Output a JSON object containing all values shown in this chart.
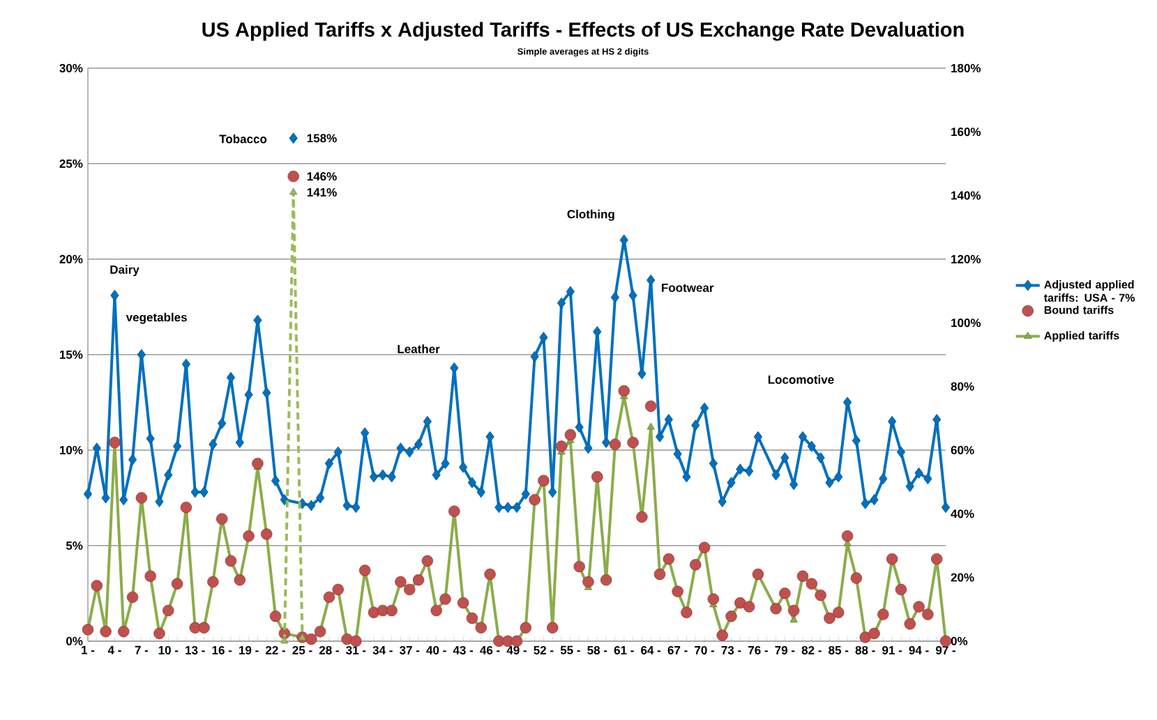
{
  "chart_data": {
    "type": "line",
    "title": "US Applied Tariffs x Adjusted Tariffs - Effects of US Exchange Rate Devaluation",
    "subtitle": "Simple averages at HS 2 digits",
    "categories": [
      "1 -",
      null,
      null,
      "4 -",
      null,
      null,
      "7 -",
      null,
      null,
      "10 -",
      null,
      null,
      "13 -",
      null,
      null,
      "16 -",
      null,
      null,
      "19 -",
      null,
      null,
      "22 -",
      null,
      null,
      "25 -",
      null,
      null,
      "28 -",
      null,
      null,
      "31 -",
      null,
      null,
      "34 -",
      null,
      null,
      "37 -",
      null,
      null,
      "40 -",
      null,
      null,
      "43 -",
      null,
      null,
      "46 -",
      null,
      null,
      "49 -",
      null,
      null,
      "52 -",
      null,
      null,
      "55 -",
      null,
      null,
      "58 -",
      null,
      null,
      "61 -",
      null,
      null,
      "64 -",
      null,
      null,
      "67 -",
      null,
      null,
      "70 -",
      null,
      null,
      "73 -",
      null,
      null,
      "76 -",
      null,
      null,
      "79 -",
      null,
      null,
      "82 -",
      null,
      null,
      "85 -",
      null,
      null,
      "88 -",
      null,
      null,
      "91 -",
      null,
      null,
      "94 -",
      null,
      null,
      "97 -"
    ],
    "series": [
      {
        "name": "Adjusted applied tariffs: USA - 7%",
        "color": "#0070c0",
        "marker": "diamond",
        "values": [
          7.7,
          10.1,
          7.5,
          18.1,
          7.4,
          9.5,
          15.0,
          10.6,
          7.3,
          8.7,
          10.2,
          14.5,
          7.8,
          7.8,
          10.3,
          11.4,
          13.8,
          10.4,
          12.9,
          16.8,
          13.0,
          8.4,
          7.4,
          null,
          7.2,
          7.1,
          7.5,
          9.3,
          9.9,
          7.1,
          7.0,
          10.9,
          8.6,
          8.7,
          8.6,
          10.1,
          9.9,
          10.3,
          11.5,
          8.7,
          9.3,
          14.3,
          9.1,
          8.3,
          7.8,
          10.7,
          7.0,
          7.0,
          7.0,
          7.7,
          14.9,
          15.9,
          7.8,
          17.7,
          18.3,
          11.2,
          10.1,
          16.2,
          10.4,
          18.0,
          21.0,
          18.1,
          14.0,
          18.9,
          10.7,
          11.6,
          9.8,
          8.6,
          11.3,
          12.2,
          9.3,
          7.3,
          8.3,
          9.0,
          8.9,
          10.7,
          null,
          8.7,
          9.6,
          8.2,
          10.7,
          10.2,
          9.6,
          8.3,
          8.6,
          12.5,
          10.5,
          7.2,
          7.4,
          8.5,
          11.5,
          9.9,
          8.1,
          8.8,
          8.5,
          11.6,
          7.0
        ]
      },
      {
        "name": "Applied tariffs",
        "color": "#8aad4a",
        "marker": "triangle",
        "values": [
          0.6,
          2.9,
          0.5,
          10.4,
          0.5,
          2.3,
          7.5,
          3.4,
          0.4,
          1.6,
          3.0,
          7.0,
          0.7,
          0.7,
          3.1,
          6.4,
          4.2,
          3.2,
          5.5,
          9.1,
          5.6,
          1.3,
          0.4,
          null,
          0.2,
          0.1,
          0.5,
          2.3,
          2.7,
          0.1,
          0.0,
          3.7,
          1.5,
          1.6,
          1.6,
          3.1,
          2.7,
          3.2,
          4.2,
          1.6,
          2.2,
          6.8,
          2.0,
          1.2,
          0.7,
          3.5,
          0.0,
          0.0,
          0.0,
          0.7,
          7.4,
          8.4,
          0.7,
          9.9,
          10.5,
          3.9,
          2.8,
          8.6,
          3.2,
          10.3,
          12.8,
          10.4,
          6.5,
          11.2,
          3.5,
          4.3,
          2.6,
          1.5,
          4.0,
          4.9,
          1.9,
          0.3,
          1.3,
          2.0,
          1.8,
          3.5,
          null,
          1.7,
          2.5,
          1.1,
          3.4,
          3.0,
          2.4,
          1.2,
          1.5,
          5.1,
          3.3,
          0.2,
          0.4,
          1.4,
          4.3,
          2.7,
          0.9,
          1.8,
          1.4,
          4.3,
          0.0
        ]
      },
      {
        "name": "Bound tariffs",
        "type": "scatter",
        "color": "#c0504d",
        "marker": "circle",
        "values": [
          0.6,
          2.9,
          0.5,
          10.4,
          0.5,
          2.3,
          7.5,
          3.4,
          0.4,
          1.6,
          3.0,
          7.0,
          0.7,
          0.7,
          3.1,
          6.4,
          4.2,
          3.2,
          5.5,
          9.3,
          5.6,
          1.3,
          0.4,
          null,
          0.2,
          0.1,
          0.5,
          2.3,
          2.7,
          0.1,
          0.0,
          3.7,
          1.5,
          1.6,
          1.6,
          3.1,
          2.7,
          3.2,
          4.2,
          1.6,
          2.2,
          6.8,
          2.0,
          1.2,
          0.7,
          3.5,
          0.0,
          0.0,
          0.0,
          0.7,
          7.4,
          8.4,
          0.7,
          10.2,
          10.8,
          3.9,
          3.1,
          8.6,
          3.2,
          10.3,
          13.1,
          10.4,
          6.5,
          12.3,
          3.5,
          4.3,
          2.6,
          1.5,
          4.0,
          4.9,
          2.2,
          0.3,
          1.3,
          2.0,
          1.8,
          3.5,
          null,
          1.7,
          2.5,
          1.6,
          3.4,
          3.0,
          2.4,
          1.2,
          1.5,
          5.5,
          3.3,
          0.2,
          0.4,
          1.4,
          4.3,
          2.7,
          0.9,
          1.8,
          1.4,
          4.3,
          0.0
        ]
      },
      {
        "axis": "y2",
        "color": "#9bbb59",
        "marker": "triangle",
        "line_style": "dashed",
        "values": [
          null,
          null,
          null,
          null,
          null,
          null,
          null,
          null,
          null,
          null,
          null,
          null,
          null,
          null,
          null,
          null,
          null,
          null,
          null,
          null,
          null,
          null,
          0,
          141,
          1,
          null,
          null,
          null,
          null,
          null,
          null,
          null,
          null,
          null,
          null,
          null,
          null,
          null,
          null,
          null,
          null,
          null,
          null,
          null,
          null,
          null,
          null,
          null,
          null,
          null,
          null,
          null,
          null,
          null,
          null,
          null,
          null,
          null,
          null,
          null,
          null,
          null,
          null,
          null,
          null,
          null,
          null,
          null,
          null,
          null,
          null,
          null,
          null,
          null,
          null,
          null,
          null,
          null,
          null,
          null,
          null,
          null,
          null,
          null,
          null,
          null,
          null,
          null,
          null,
          null,
          null,
          null,
          null,
          null,
          null,
          null,
          null
        ],
        "value_labels": [
          null,
          null,
          null,
          null,
          null,
          null,
          null,
          null,
          null,
          null,
          null,
          null,
          null,
          null,
          null,
          null,
          null,
          null,
          null,
          null,
          null,
          null,
          null,
          "141%",
          null,
          null,
          null,
          null,
          null,
          null,
          null,
          null,
          null,
          null,
          null,
          null,
          null,
          null,
          null,
          null,
          null,
          null,
          null,
          null,
          null,
          null,
          null,
          null,
          null,
          null,
          null,
          null,
          null,
          null,
          null,
          null,
          null,
          null,
          null,
          null,
          null,
          null,
          null,
          null,
          null,
          null,
          null,
          null,
          null,
          null,
          null,
          null,
          null,
          null,
          null,
          null,
          null,
          null,
          null,
          null,
          null,
          null,
          null,
          null,
          null,
          null,
          null,
          null,
          null,
          null,
          null,
          null,
          null,
          null,
          null,
          null,
          null
        ]
      },
      {
        "type": "scatter",
        "axis": "y2",
        "color": "#0070c0",
        "marker": "diamond",
        "values": [
          null,
          null,
          null,
          null,
          null,
          null,
          null,
          null,
          null,
          null,
          null,
          null,
          null,
          null,
          null,
          null,
          null,
          null,
          null,
          null,
          null,
          null,
          null,
          158,
          null,
          null,
          null,
          null,
          null,
          null,
          null,
          null,
          null,
          null,
          null,
          null,
          null,
          null,
          null,
          null,
          null,
          null,
          null,
          null,
          null,
          null,
          null,
          null,
          null,
          null,
          null,
          null,
          null,
          null,
          null,
          null,
          null,
          null,
          null,
          null,
          null,
          null,
          null,
          null,
          null,
          null,
          null,
          null,
          null,
          null,
          null,
          null,
          null,
          null,
          null,
          null,
          null,
          null,
          null,
          null,
          null,
          null,
          null,
          null,
          null,
          null,
          null,
          null,
          null,
          null,
          null,
          null,
          null,
          null,
          null,
          null,
          null
        ],
        "value_labels": [
          null,
          null,
          null,
          null,
          null,
          null,
          null,
          null,
          null,
          null,
          null,
          null,
          null,
          null,
          null,
          null,
          null,
          null,
          null,
          null,
          null,
          null,
          null,
          "158%",
          null,
          null,
          null,
          null,
          null,
          null,
          null,
          null,
          null,
          null,
          null,
          null,
          null,
          null,
          null,
          null,
          null,
          null,
          null,
          null,
          null,
          null,
          null,
          null,
          null,
          null,
          null,
          null,
          null,
          null,
          null,
          null,
          null,
          null,
          null,
          null,
          null,
          null,
          null,
          null,
          null,
          null,
          null,
          null,
          null,
          null,
          null,
          null,
          null,
          null,
          null,
          null,
          null,
          null,
          null,
          null,
          null,
          null,
          null,
          null,
          null,
          null,
          null,
          null,
          null,
          null,
          null,
          null,
          null,
          null,
          null,
          null,
          null
        ]
      },
      {
        "type": "scatter",
        "axis": "y2",
        "color": "#c0504d",
        "marker": "circle",
        "values": [
          null,
          null,
          null,
          null,
          null,
          null,
          null,
          null,
          null,
          null,
          null,
          null,
          null,
          null,
          null,
          null,
          null,
          null,
          null,
          null,
          null,
          null,
          null,
          146,
          null,
          null,
          null,
          null,
          null,
          null,
          null,
          null,
          null,
          null,
          null,
          null,
          null,
          null,
          null,
          null,
          null,
          null,
          null,
          null,
          null,
          null,
          null,
          null,
          null,
          null,
          null,
          null,
          null,
          null,
          null,
          null,
          null,
          null,
          null,
          null,
          null,
          null,
          null,
          null,
          null,
          null,
          null,
          null,
          null,
          null,
          null,
          null,
          null,
          null,
          null,
          null,
          null,
          null,
          null,
          null,
          null,
          null,
          null,
          null,
          null,
          null,
          null,
          null,
          null,
          null,
          null,
          null,
          null,
          null,
          null,
          null,
          null
        ],
        "value_labels": [
          null,
          null,
          null,
          null,
          null,
          null,
          null,
          null,
          null,
          null,
          null,
          null,
          null,
          null,
          null,
          null,
          null,
          null,
          null,
          null,
          null,
          null,
          null,
          "146%",
          null,
          null,
          null,
          null,
          null,
          null,
          null,
          null,
          null,
          null,
          null,
          null,
          null,
          null,
          null,
          null,
          null,
          null,
          null,
          null,
          null,
          null,
          null,
          null,
          null,
          null,
          null,
          null,
          null,
          null,
          null,
          null,
          null,
          null,
          null,
          null,
          null,
          null,
          null,
          null,
          null,
          null,
          null,
          null,
          null,
          null,
          null,
          null,
          null,
          null,
          null,
          null,
          null,
          null,
          null,
          null,
          null,
          null,
          null,
          null,
          null,
          null,
          null,
          null,
          null,
          null,
          null,
          null,
          null,
          null,
          null,
          null,
          null
        ]
      }
    ],
    "ylim": [
      0,
      30
    ],
    "yticks": [
      {
        "value": 0,
        "label": "0%"
      },
      {
        "value": 5,
        "label": "5%"
      },
      {
        "value": 10,
        "label": "10%"
      },
      {
        "value": 15,
        "label": "15%"
      },
      {
        "value": 20,
        "label": "20%"
      },
      {
        "value": 25,
        "label": "25%"
      },
      {
        "value": 30,
        "label": "30%"
      }
    ],
    "y2lim": [
      0,
      180
    ],
    "y2ticks": [
      {
        "value": 0,
        "label": "0%"
      },
      {
        "value": 20,
        "label": "20%"
      },
      {
        "value": 40,
        "label": "40%"
      },
      {
        "value": 60,
        "label": "60%"
      },
      {
        "value": 80,
        "label": "80%"
      },
      {
        "value": 100,
        "label": "100%"
      },
      {
        "value": 120,
        "label": "120%"
      },
      {
        "value": 140,
        "label": "140%"
      },
      {
        "value": 160,
        "label": "160%"
      },
      {
        "value": 180,
        "label": "180%"
      }
    ],
    "grid": "y",
    "legend": "right",
    "annotations": [
      "Tobacco",
      "Dairy",
      "vegetables",
      "Leather",
      "Clothing",
      "Footwear",
      "Locomotive"
    ]
  }
}
